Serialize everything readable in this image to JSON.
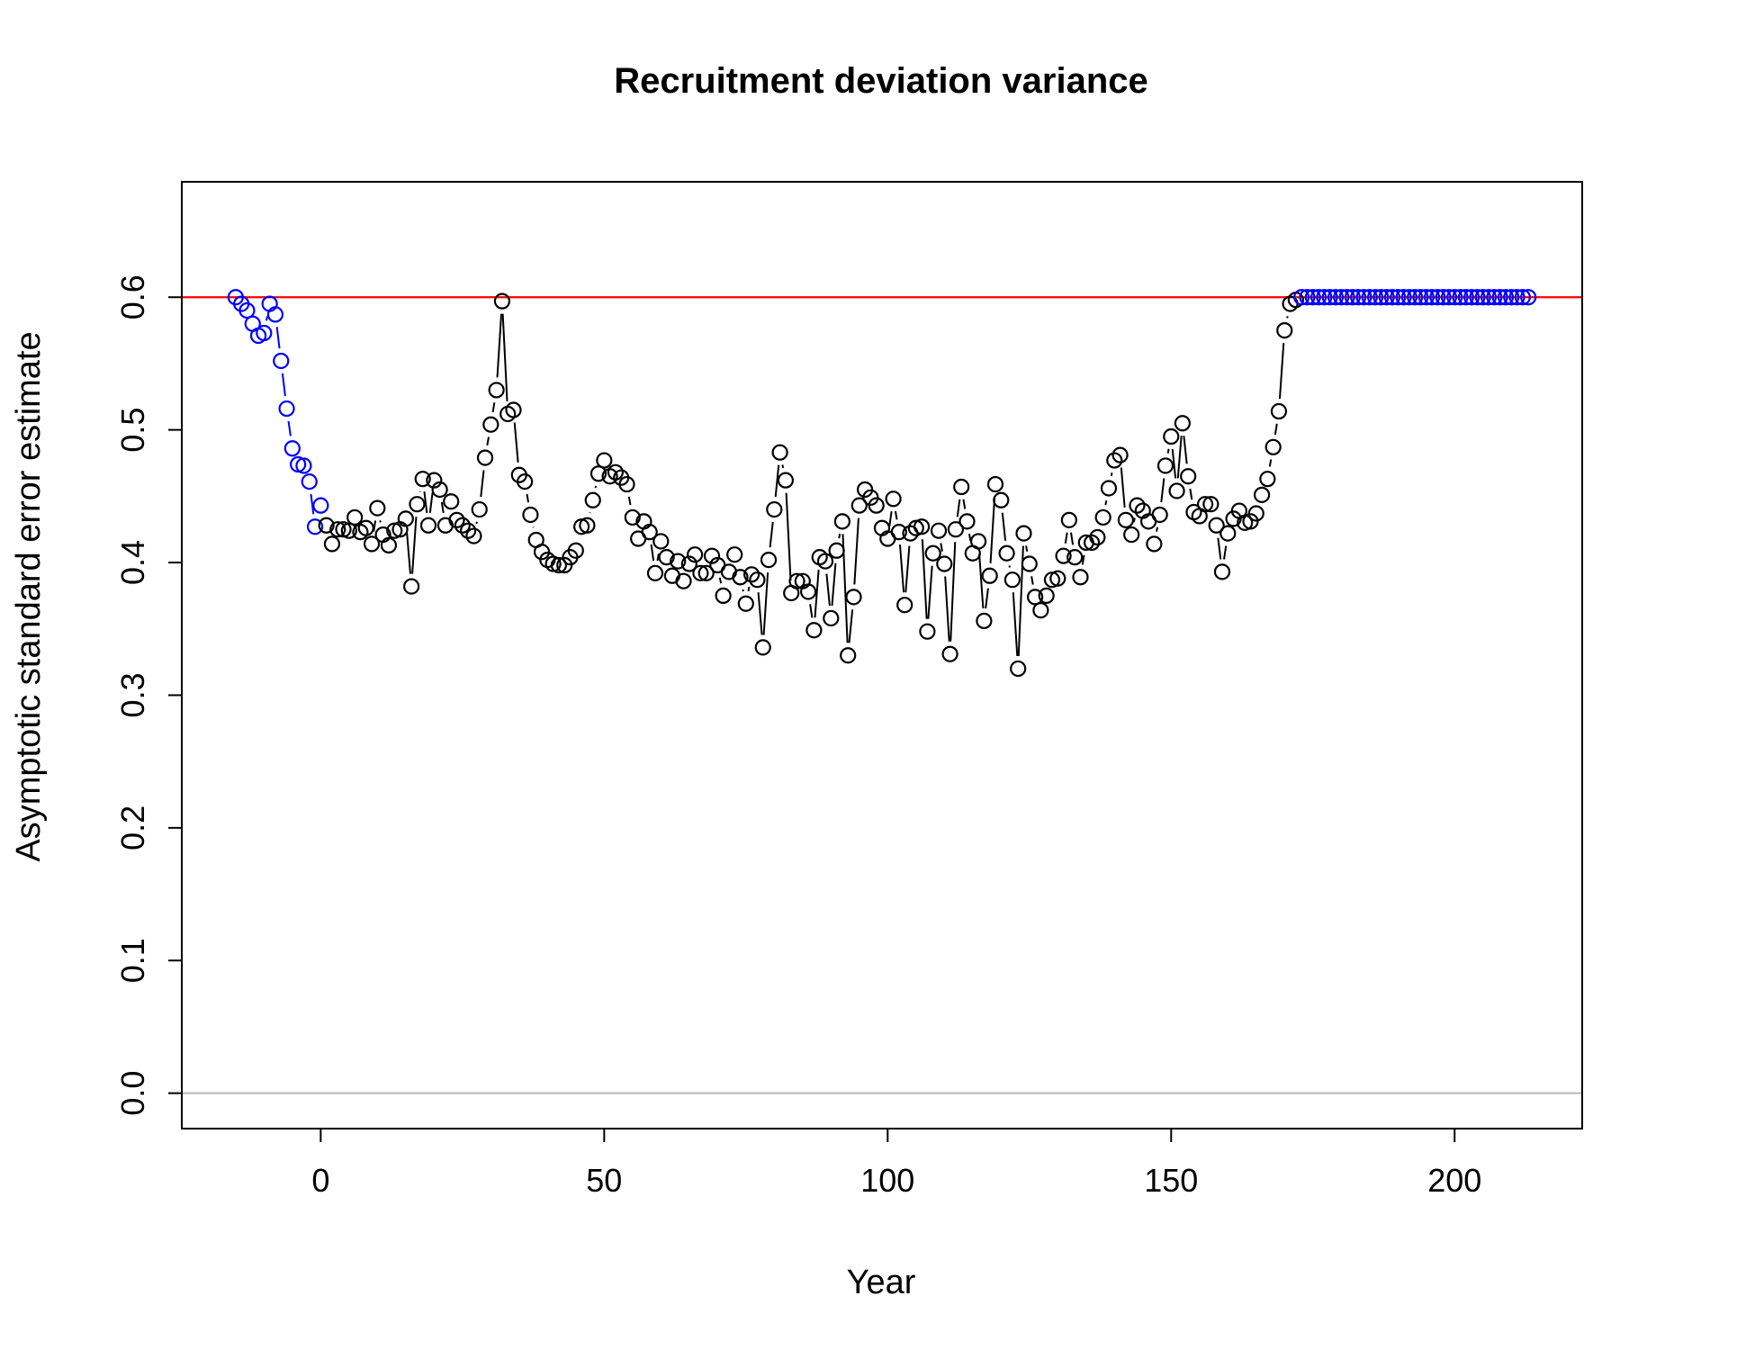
{
  "chart_data": {
    "type": "scatter",
    "title": "Recruitment deviation variance",
    "xlabel": "Year",
    "ylabel": "Asymptotic standard error estimate",
    "xlim": [
      -24.5,
      222.5
    ],
    "ylim": [
      -0.0267,
      0.687
    ],
    "x_ticks": [
      0,
      50,
      100,
      150,
      200
    ],
    "x_tick_labels": [
      "0",
      "50",
      "100",
      "150",
      "200"
    ],
    "y_ticks": [
      0.0,
      0.1,
      0.2,
      0.3,
      0.4,
      0.5,
      0.6
    ],
    "y_tick_labels": [
      "0.0",
      "0.1",
      "0.2",
      "0.3",
      "0.4",
      "0.5",
      "0.6"
    ],
    "reference_lines": [
      {
        "y": 0.6,
        "color": "#ff0000"
      },
      {
        "y": 0.0,
        "color": "#bebebe"
      }
    ],
    "colors": {
      "early": "#0000ff",
      "main": "#000000",
      "forecast": "#0000ff"
    },
    "series": [
      {
        "role": "early",
        "x": [
          -15,
          -14,
          -13,
          -12,
          -11,
          -10,
          -9,
          -8,
          -7,
          -6,
          -5,
          -4,
          -3,
          -2,
          -1,
          0
        ],
        "values": [
          0.6,
          0.595,
          0.59,
          0.58,
          0.571,
          0.573,
          0.595,
          0.587,
          0.552,
          0.516,
          0.486,
          0.474,
          0.473,
          0.461,
          0.427,
          0.443
        ]
      },
      {
        "role": "main",
        "x": [
          1,
          2,
          3,
          4,
          5,
          6,
          7,
          8,
          9,
          10,
          11,
          12,
          13,
          14,
          15,
          16,
          17,
          18,
          19,
          20,
          21,
          22,
          23,
          24,
          25,
          26,
          27,
          28,
          29,
          30,
          31,
          32,
          33,
          34,
          35,
          36,
          37,
          38,
          39,
          40,
          41,
          42,
          43,
          44,
          45,
          46,
          47,
          48,
          49,
          50,
          51,
          52,
          53,
          54,
          55,
          56,
          57,
          58,
          59,
          60,
          61,
          62,
          63,
          64,
          65,
          66,
          67,
          68,
          69,
          70,
          71,
          72,
          73,
          74,
          75,
          76,
          77,
          78,
          79,
          80,
          81,
          82,
          83,
          84,
          85,
          86,
          87,
          88,
          89,
          90,
          91,
          92,
          93,
          94,
          95,
          96,
          97,
          98,
          99,
          100,
          101,
          102,
          103,
          104,
          105,
          106,
          107,
          108,
          109,
          110,
          111,
          112,
          113,
          114,
          115,
          116,
          117,
          118,
          119,
          120,
          121,
          122,
          123,
          124,
          125,
          126,
          127,
          128,
          129,
          130,
          131,
          132,
          133,
          134,
          135,
          136,
          137,
          138,
          139,
          140,
          141,
          142,
          143,
          144,
          145,
          146,
          147,
          148,
          149,
          150,
          151,
          152,
          153,
          154,
          155,
          156,
          157,
          158,
          159,
          160,
          161,
          162,
          163,
          164,
          165,
          166,
          167,
          168,
          169,
          170,
          171,
          172
        ],
        "values": [
          0.428,
          0.414,
          0.425,
          0.425,
          0.424,
          0.434,
          0.423,
          0.426,
          0.414,
          0.441,
          0.421,
          0.413,
          0.424,
          0.425,
          0.433,
          0.382,
          0.444,
          0.463,
          0.428,
          0.462,
          0.455,
          0.428,
          0.446,
          0.432,
          0.428,
          0.424,
          0.42,
          0.44,
          0.479,
          0.504,
          0.53,
          0.597,
          0.512,
          0.515,
          0.466,
          0.461,
          0.436,
          0.417,
          0.408,
          0.402,
          0.399,
          0.398,
          0.398,
          0.404,
          0.409,
          0.427,
          0.428,
          0.447,
          0.467,
          0.477,
          0.465,
          0.468,
          0.464,
          0.459,
          0.434,
          0.418,
          0.431,
          0.423,
          0.392,
          0.416,
          0.404,
          0.39,
          0.401,
          0.386,
          0.399,
          0.406,
          0.392,
          0.392,
          0.405,
          0.398,
          0.375,
          0.393,
          0.406,
          0.389,
          0.369,
          0.391,
          0.387,
          0.336,
          0.402,
          0.44,
          0.483,
          0.462,
          0.377,
          0.386,
          0.386,
          0.378,
          0.349,
          0.404,
          0.401,
          0.358,
          0.409,
          0.431,
          0.33,
          0.374,
          0.443,
          0.455,
          0.449,
          0.443,
          0.426,
          0.418,
          0.448,
          0.423,
          0.368,
          0.422,
          0.426,
          0.427,
          0.348,
          0.407,
          0.424,
          0.399,
          0.331,
          0.425,
          0.457,
          0.431,
          0.407,
          0.416,
          0.356,
          0.39,
          0.459,
          0.447,
          0.407,
          0.387,
          0.32,
          0.422,
          0.399,
          0.374,
          0.364,
          0.375,
          0.387,
          0.388,
          0.405,
          0.432,
          0.404,
          0.389,
          0.415,
          0.415,
          0.419,
          0.434,
          0.456,
          0.477,
          0.481,
          0.432,
          0.421,
          0.443,
          0.439,
          0.431,
          0.414,
          0.436,
          0.473,
          0.495,
          0.454,
          0.505,
          0.465,
          0.438,
          0.435,
          0.444,
          0.444,
          0.428,
          0.393,
          0.422,
          0.433,
          0.439,
          0.43,
          0.431,
          0.437,
          0.451,
          0.463,
          0.487,
          0.514,
          0.575,
          0.595,
          0.598
        ]
      },
      {
        "role": "forecast",
        "x_start": 173,
        "x_end": 213,
        "value": 0.6
      }
    ]
  }
}
